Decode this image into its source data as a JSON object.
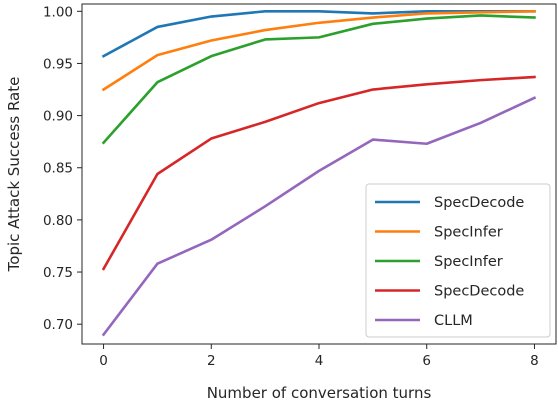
{
  "chart_data": {
    "type": "line",
    "title": "",
    "xlabel": "Number of conversation turns",
    "ylabel": "Topic Attack Success Rate",
    "xlim": [
      -0.4,
      8.4
    ],
    "ylim": [
      0.681,
      1.007
    ],
    "xticks": [
      0,
      2,
      4,
      6,
      8
    ],
    "yticks": [
      0.7,
      0.75,
      0.8,
      0.85,
      0.9,
      0.95,
      1.0
    ],
    "ytick_labels": [
      "0.70",
      "0.75",
      "0.80",
      "0.85",
      "0.90",
      "0.95",
      "1.00"
    ],
    "grid": false,
    "legend_position": "lower-right",
    "x": [
      0,
      1,
      2,
      3,
      4,
      5,
      6,
      7,
      8
    ],
    "series": [
      {
        "name": "SpecDecode",
        "color": "#1f77b4",
        "values": [
          0.957,
          0.985,
          0.995,
          1.0,
          1.0,
          0.998,
          1.0,
          1.0,
          1.0
        ]
      },
      {
        "name": "SpecInfer",
        "color": "#ff7f0e",
        "values": [
          0.925,
          0.958,
          0.972,
          0.982,
          0.989,
          0.994,
          0.998,
          0.999,
          1.0
        ]
      },
      {
        "name": "SpecInfer",
        "color": "#2ca02c",
        "values": [
          0.874,
          0.932,
          0.957,
          0.973,
          0.975,
          0.988,
          0.993,
          0.996,
          0.994
        ]
      },
      {
        "name": "SpecDecode",
        "color": "#d62728",
        "values": [
          0.753,
          0.844,
          0.878,
          0.894,
          0.912,
          0.925,
          0.93,
          0.934,
          0.937
        ]
      },
      {
        "name": "CLLM",
        "color": "#9467bd",
        "values": [
          0.69,
          0.758,
          0.781,
          0.813,
          0.847,
          0.877,
          0.873,
          0.893,
          0.917
        ]
      }
    ]
  }
}
